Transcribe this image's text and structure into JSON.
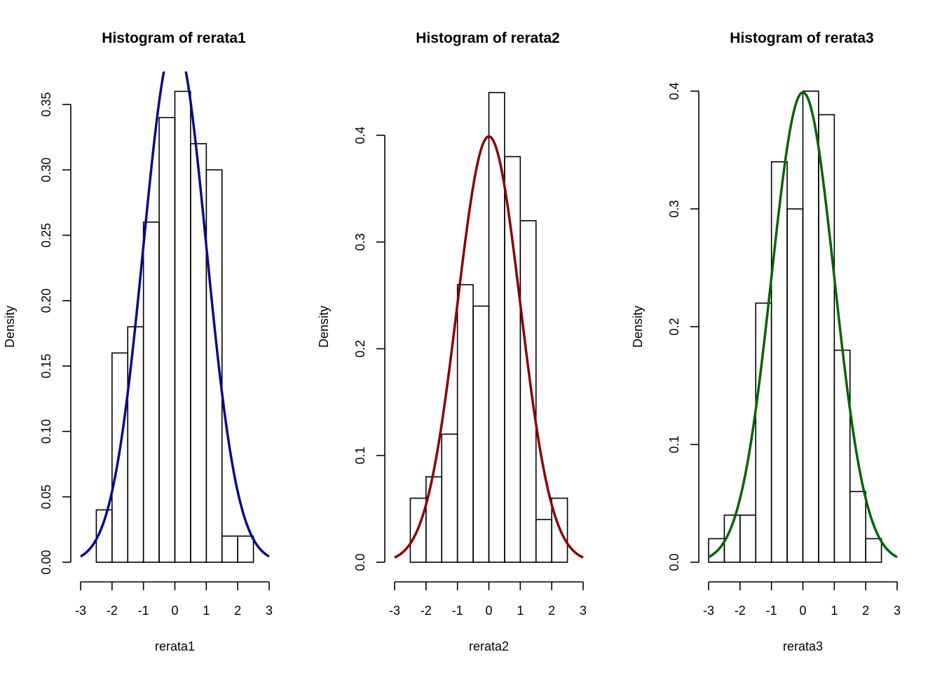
{
  "chart_data": [
    {
      "type": "bar",
      "title": "Histogram of rerata1",
      "xlabel": "rerata1",
      "ylabel": "Density",
      "xlim": [
        -3,
        3
      ],
      "ylim": [
        0,
        0.36
      ],
      "x_ticks": [
        "-3",
        "-2",
        "-1",
        "0",
        "1",
        "2",
        "3"
      ],
      "y_ticks": [
        "0.00",
        "0.05",
        "0.10",
        "0.15",
        "0.20",
        "0.25",
        "0.30",
        "0.35"
      ],
      "bin_edges": [
        -2.5,
        -2.0,
        -1.5,
        -1.0,
        -0.5,
        0.0,
        0.5,
        1.0,
        1.5,
        2.0,
        2.5
      ],
      "values": [
        0.04,
        0.16,
        0.18,
        0.26,
        0.34,
        0.36,
        0.32,
        0.3,
        0.02,
        0.02
      ],
      "curve": {
        "type": "normal",
        "mean": 0,
        "sd": 1,
        "color": "#0a0a8a"
      }
    },
    {
      "type": "bar",
      "title": "Histogram of rerata2",
      "xlabel": "rerata2",
      "ylabel": "Density",
      "xlim": [
        -3,
        3
      ],
      "ylim": [
        0,
        0.44
      ],
      "x_ticks": [
        "-3",
        "-2",
        "-1",
        "0",
        "1",
        "2",
        "3"
      ],
      "y_ticks": [
        "0.0",
        "0.1",
        "0.2",
        "0.3",
        "0.4"
      ],
      "bin_edges": [
        -2.5,
        -2.0,
        -1.5,
        -1.0,
        -0.5,
        0.0,
        0.5,
        1.0,
        1.5,
        2.0,
        2.5
      ],
      "values": [
        0.06,
        0.08,
        0.12,
        0.26,
        0.24,
        0.44,
        0.38,
        0.32,
        0.04,
        0.06
      ],
      "curve": {
        "type": "normal",
        "mean": 0,
        "sd": 1,
        "color": "#8b0000"
      }
    },
    {
      "type": "bar",
      "title": "Histogram of rerata3",
      "xlabel": "rerata3",
      "ylabel": "Density",
      "xlim": [
        -3,
        3
      ],
      "ylim": [
        0,
        0.4
      ],
      "x_ticks": [
        "-3",
        "-2",
        "-1",
        "0",
        "1",
        "2",
        "3"
      ],
      "y_ticks": [
        "0.0",
        "0.1",
        "0.2",
        "0.3",
        "0.4"
      ],
      "bin_edges": [
        -3.0,
        -2.5,
        -2.0,
        -1.5,
        -1.0,
        -0.5,
        0.0,
        0.5,
        1.0,
        1.5,
        2.0,
        2.5
      ],
      "values": [
        0.02,
        0.04,
        0.04,
        0.22,
        0.34,
        0.3,
        0.4,
        0.38,
        0.18,
        0.06,
        0.02
      ],
      "curve": {
        "type": "normal",
        "mean": 0,
        "sd": 1,
        "color": "#006400"
      }
    }
  ]
}
